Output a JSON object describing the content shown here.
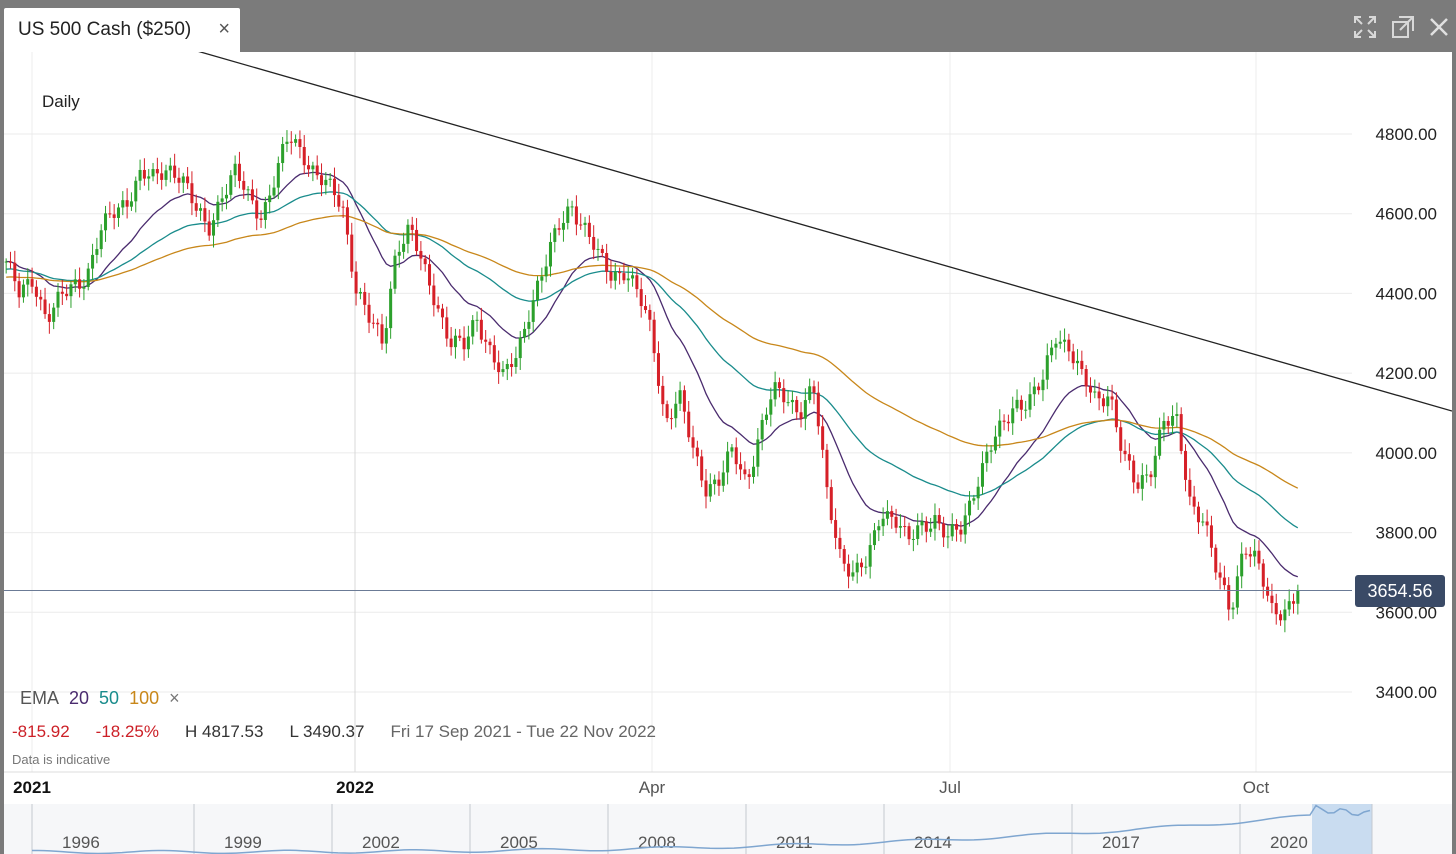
{
  "tab": {
    "title": "US 500 Cash ($250)",
    "close_glyph": "×"
  },
  "window_controls": [
    {
      "name": "fullscreen-icon"
    },
    {
      "name": "popout-icon"
    },
    {
      "name": "close-window-icon"
    }
  ],
  "chart": {
    "period_label": "Daily",
    "price_tag": "3654.56",
    "legend": {
      "label": "EMA",
      "p1": "20",
      "p2": "50",
      "p3": "100",
      "remove": "×"
    },
    "stats": {
      "change": "-815.92",
      "change_pct": "-18.25%",
      "high": "H 4817.53",
      "low": "L 3490.37",
      "range": "Fri 17 Sep 2021 - Tue 22 Nov 2022"
    },
    "disclaimer": "Data is indicative",
    "colors": {
      "up": "#2ca02c",
      "down": "#d62028",
      "ema20": "#4a2b6e",
      "ema50": "#1a8c8c",
      "ema100": "#c8871a",
      "trend": "#222222"
    }
  },
  "chart_data": {
    "type": "candlestick",
    "instrument": "US 500 Cash ($250)",
    "interval": "Daily",
    "y_ticks": [
      "4800.00",
      "4600.00",
      "4400.00",
      "4200.00",
      "4000.00",
      "3800.00",
      "3600.00",
      "3400.00"
    ],
    "ylim": [
      3400,
      4800
    ],
    "x_ticks": [
      "2021",
      "2022",
      "Apr",
      "Jul",
      "Oct"
    ],
    "current_price": 3654.56,
    "high": 4817.53,
    "low": 3490.37,
    "ema_periods": [
      20,
      50,
      100
    ],
    "close_path": [
      4480,
      4390,
      4440,
      4340,
      4380,
      4420,
      4450,
      4550,
      4600,
      4640,
      4700,
      4680,
      4720,
      4700,
      4610,
      4560,
      4650,
      4700,
      4640,
      4600,
      4690,
      4790,
      4760,
      4700,
      4660,
      4620,
      4420,
      4330,
      4270,
      4520,
      4560,
      4460,
      4380,
      4280,
      4260,
      4340,
      4260,
      4180,
      4250,
      4380,
      4460,
      4560,
      4630,
      4560,
      4490,
      4450,
      4460,
      4390,
      4300,
      4080,
      4140,
      4010,
      3920,
      3930,
      4000,
      3930,
      4050,
      4150,
      4140,
      4110,
      4160,
      3900,
      3750,
      3690,
      3720,
      3860,
      3840,
      3770,
      3820,
      3840,
      3780,
      3810,
      3920,
      4000,
      4060,
      4130,
      4130,
      4170,
      4300,
      4270,
      4180,
      4130,
      4160,
      3990,
      3910,
      3960,
      4080,
      4070,
      3880,
      3840,
      3690,
      3600,
      3780,
      3720,
      3600,
      3610,
      3654.56
    ],
    "trendline": {
      "from": [
        "2021",
        4960
      ],
      "to": [
        "Nov 2022",
        4110
      ]
    },
    "navigator_years": [
      "1996",
      "1999",
      "2002",
      "2005",
      "2008",
      "2011",
      "2014",
      "2017",
      "2020"
    ]
  }
}
